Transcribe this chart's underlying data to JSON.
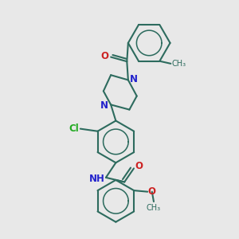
{
  "bg_color": "#e8e8e8",
  "bond_color": "#2d6b5e",
  "N_color": "#2222cc",
  "O_color": "#cc2222",
  "Cl_color": "#22aa22",
  "lw": 1.5,
  "fs": 8.5,
  "xlim": [
    0.0,
    1.0
  ],
  "ylim": [
    0.0,
    1.0
  ]
}
